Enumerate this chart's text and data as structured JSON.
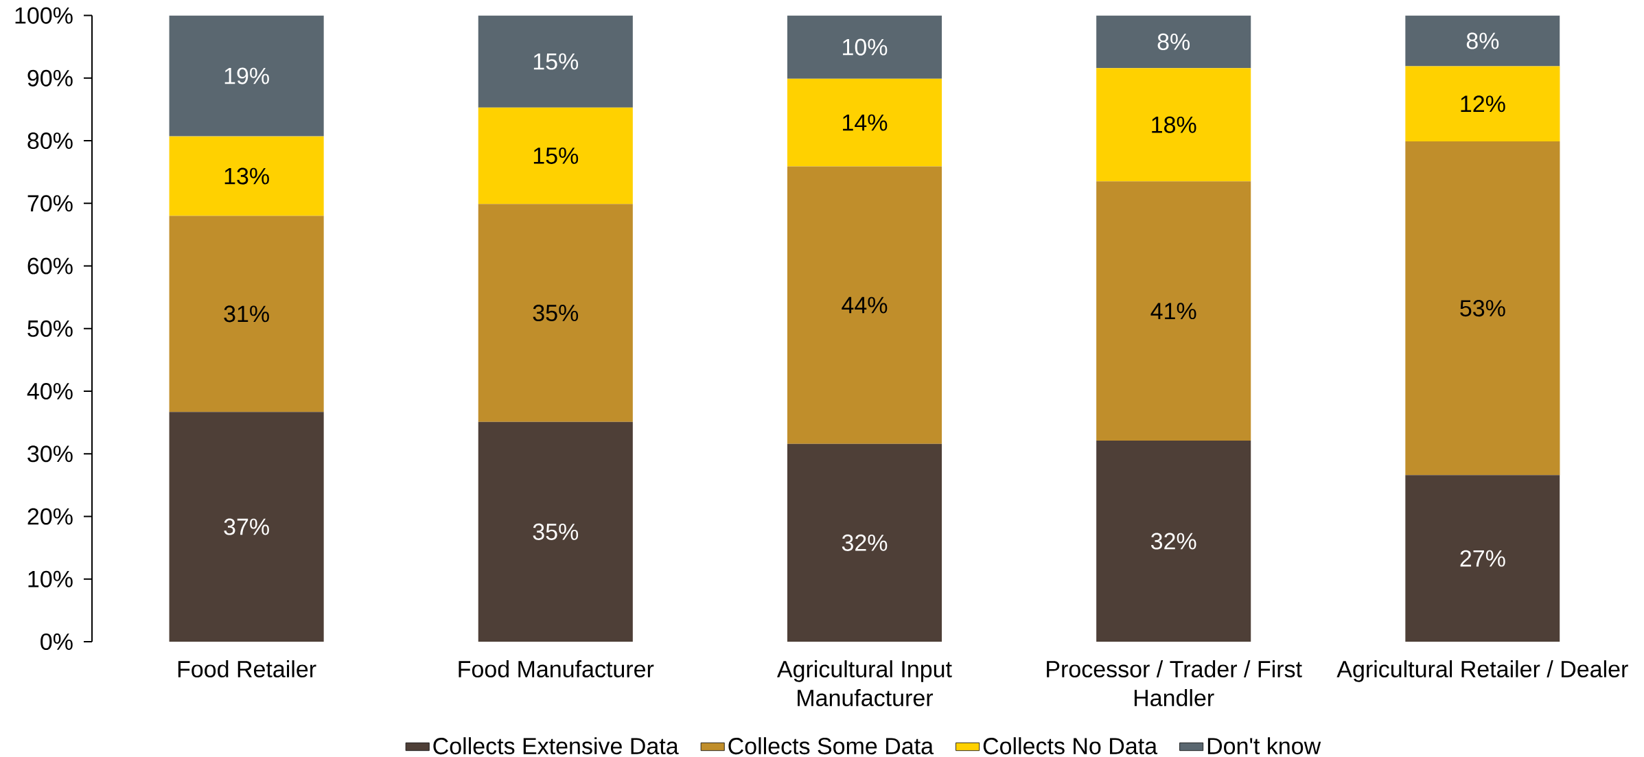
{
  "chart_data": {
    "type": "bar",
    "stacked": true,
    "categories": [
      "Food Retailer",
      "Food Manufacturer",
      "Agricultural Input Manufacturer",
      "Processor / Trader / First Handler",
      "Agricultural Retailer / Dealer"
    ],
    "series": [
      {
        "name": "Collects Extensive Data",
        "color": "#4e3f37",
        "values": [
          36.7,
          35.1,
          31.6,
          32.1,
          26.6
        ],
        "value_labels": [
          "37%",
          "35%",
          "32%",
          "32%",
          "27%"
        ]
      },
      {
        "name": "Collects Some Data",
        "color": "#c08e2b",
        "values": [
          31.3,
          34.8,
          44.3,
          41.4,
          53.3
        ],
        "value_labels": [
          "31%",
          "35%",
          "44%",
          "41%",
          "53%"
        ]
      },
      {
        "name": "Collects No Data",
        "color": "#ffd100",
        "values": [
          12.7,
          15.4,
          14.0,
          18.1,
          12.0
        ],
        "value_labels": [
          "13%",
          "15%",
          "14%",
          "18%",
          "12%"
        ]
      },
      {
        "name": "Don't know",
        "color": "#5a6770",
        "values": [
          19.3,
          14.7,
          10.1,
          8.4,
          8.1
        ],
        "value_labels": [
          "19%",
          "15%",
          "10%",
          "8%",
          "8%"
        ]
      }
    ],
    "ylim": [
      0,
      100
    ],
    "yticks": [
      {
        "value": 0,
        "label": "0%"
      },
      {
        "value": 10,
        "label": "10%"
      },
      {
        "value": 20,
        "label": "20%"
      },
      {
        "value": 30,
        "label": "30%"
      },
      {
        "value": 40,
        "label": "40%"
      },
      {
        "value": 50,
        "label": "50%"
      },
      {
        "value": 60,
        "label": "60%"
      },
      {
        "value": 70,
        "label": "70%"
      },
      {
        "value": 80,
        "label": "80%"
      },
      {
        "value": 90,
        "label": "90%"
      },
      {
        "value": 100,
        "label": "100%"
      }
    ],
    "legend": "bottom"
  }
}
